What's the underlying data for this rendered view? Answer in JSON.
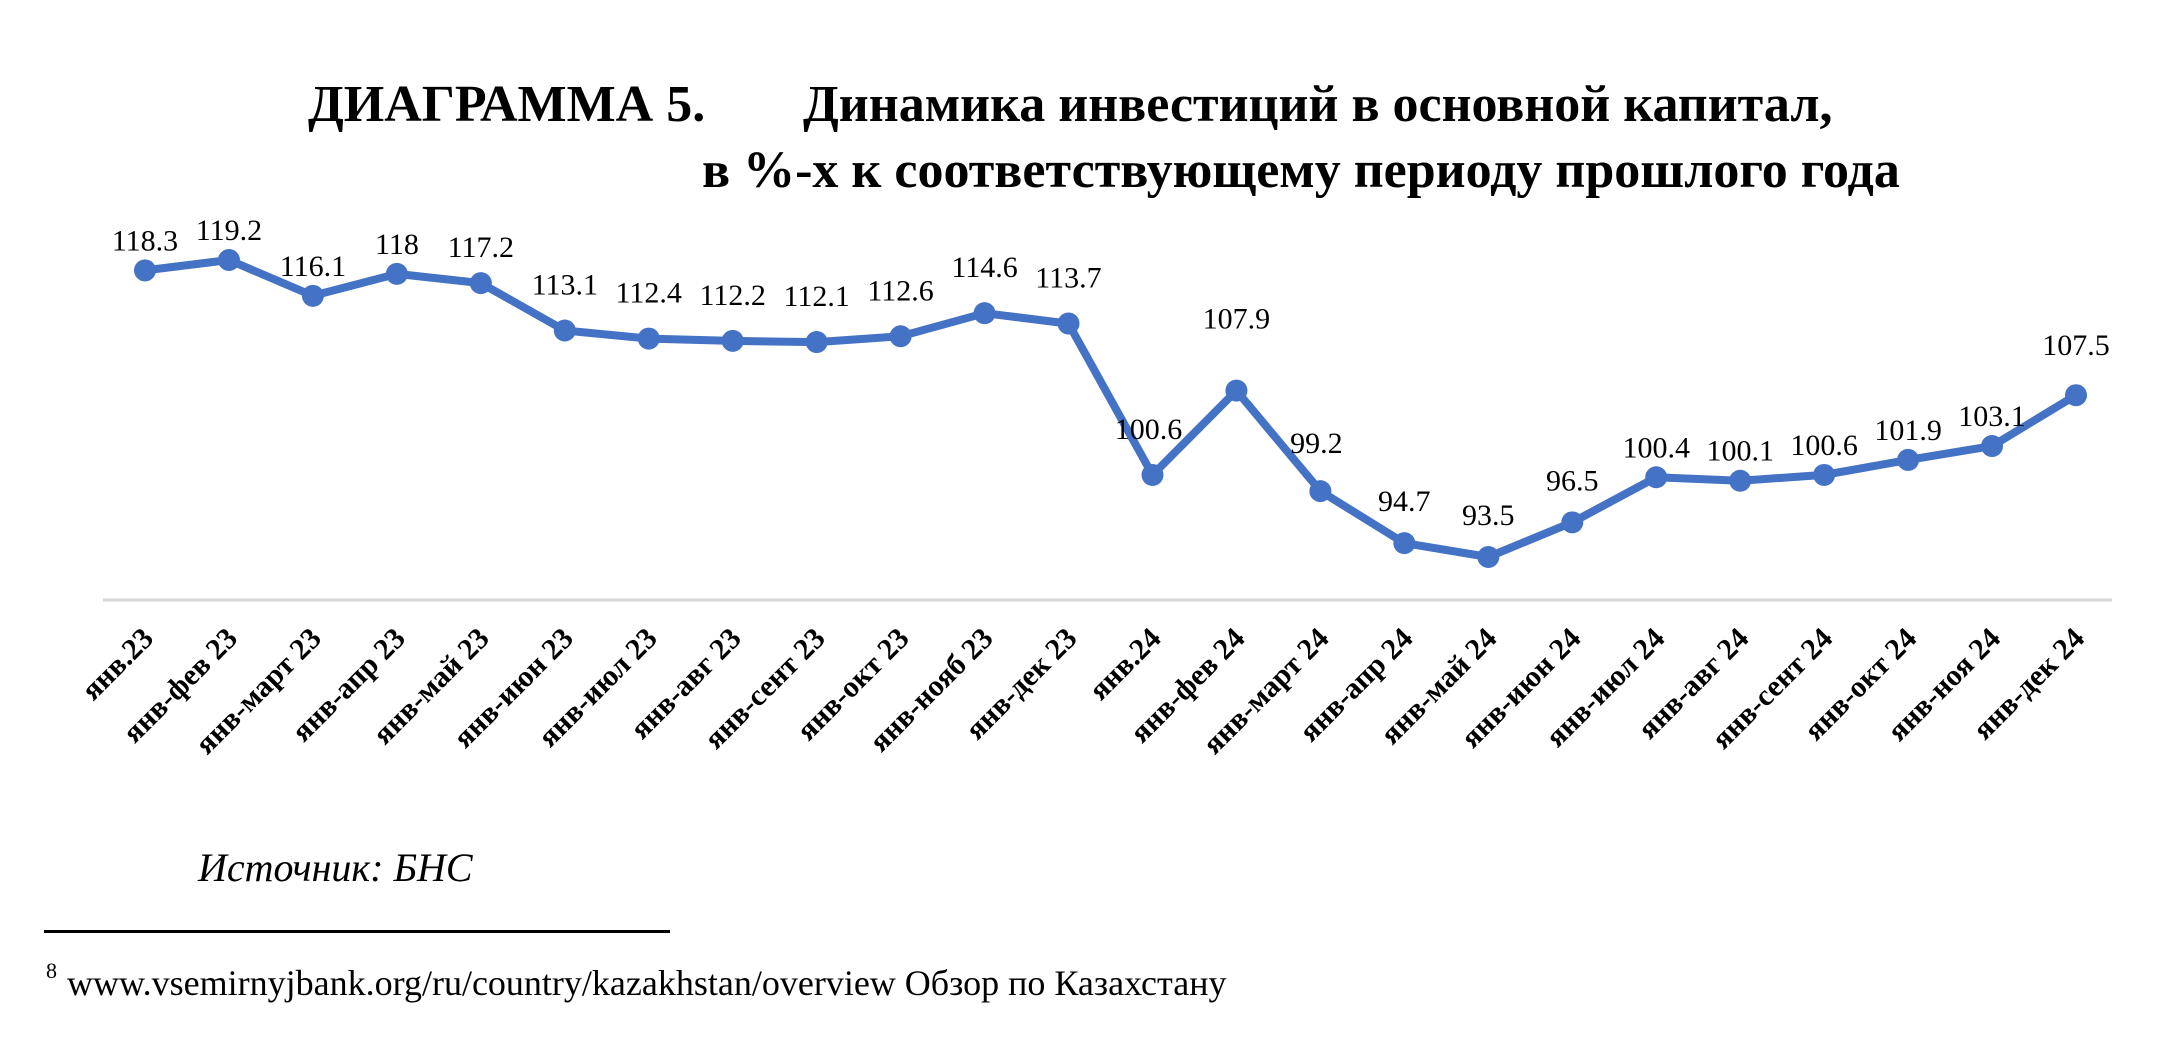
{
  "title": {
    "label": "ДИАГРАММА 5.",
    "line1": "Динамика инвестиций в основной капитал,",
    "line2": "в %-х к соответствующему периоду прошлого года"
  },
  "chart_data": {
    "type": "line",
    "categories": [
      "янв.23",
      "янв-фев 23",
      "янв-март 23",
      "янв-апр 23",
      "янв-май 23",
      "янв-июн 23",
      "янв-июл 23",
      "янв-авг 23",
      "янв-сент 23",
      "янв-окт 23",
      "янв-нояб 23",
      "янв-дек 23",
      "янв.24",
      "янв-фев 24",
      "янв-март 24",
      "янв-апр 24",
      "янв-май 24",
      "янв-июн 24",
      "янв-июл 24",
      "янв-авг 24",
      "янв-сент 24",
      "янв-окт 24",
      "янв-ноя 24",
      "янв-дек 24"
    ],
    "series": [
      {
        "values": [
          118.3,
          119.2,
          116.1,
          118,
          117.2,
          113.1,
          112.4,
          112.2,
          112.1,
          112.6,
          114.6,
          113.7,
          100.6,
          107.9,
          99.2,
          94.7,
          93.5,
          96.5,
          100.4,
          100.1,
          100.6,
          101.9,
          103.1,
          107.5
        ],
        "value_labels": [
          "118.3",
          "119.2",
          "116.1",
          "118",
          "117.2",
          "113.1",
          "112.4",
          "112.2",
          "112.1",
          "112.6",
          "114.6",
          "113.7",
          "100.6",
          "107.9",
          "99.2",
          "94.7",
          "93.5",
          "96.5",
          "100.4",
          "100.1",
          "100.6",
          "101.9",
          "103.1",
          "107.5"
        ],
        "color": "#4472C4"
      }
    ],
    "grid": false,
    "legend": "none"
  },
  "source": "Источник: БНС",
  "footnote": {
    "number": "8",
    "text": "www.vsemirnyjbank.org/ru/country/kazakhstan/overview Обзор по Казахстану"
  },
  "colors": {
    "line": "#4472C4",
    "axis": "#D9D9D9",
    "text": "#000000"
  }
}
